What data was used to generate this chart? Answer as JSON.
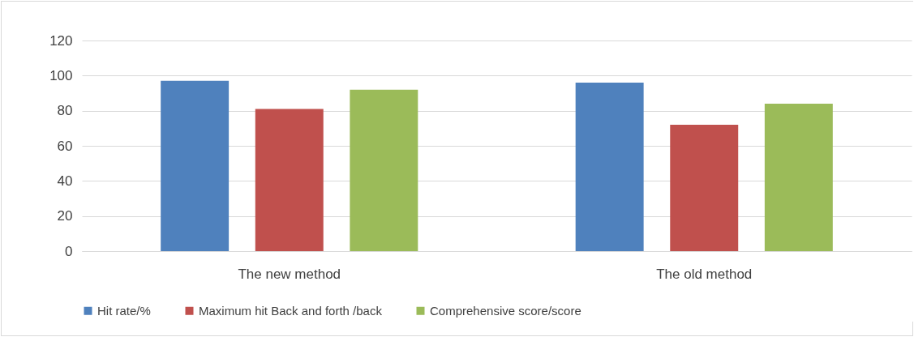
{
  "chart_data": {
    "type": "bar",
    "categories": [
      "The new method",
      "The old method"
    ],
    "series": [
      {
        "name": "Hit rate/%",
        "color": "#4f81bd",
        "values": [
          97,
          96
        ]
      },
      {
        "name": "Maximum hit Back and forth /back",
        "color": "#c0504d",
        "values": [
          81,
          72
        ]
      },
      {
        "name": "Comprehensive score/score",
        "color": "#9bbb59",
        "values": [
          92,
          84
        ]
      }
    ],
    "ylim": [
      0,
      120
    ],
    "yticks": [
      0,
      20,
      40,
      60,
      80,
      100,
      120
    ],
    "grid": "y",
    "legend": "bottom"
  }
}
